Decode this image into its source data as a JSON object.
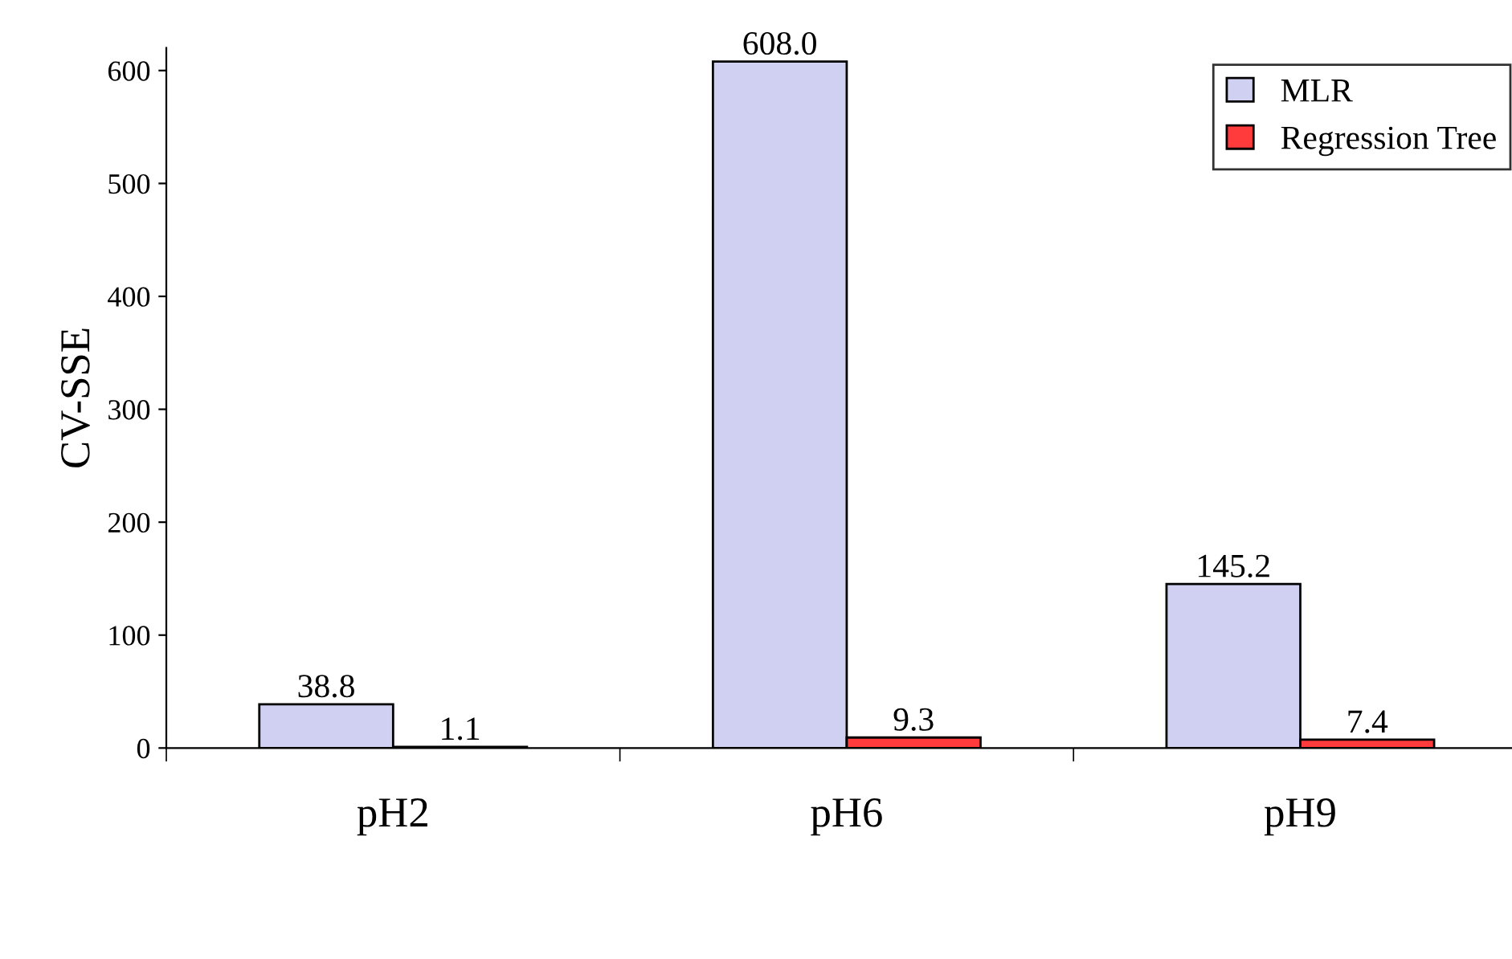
{
  "chart_data": {
    "type": "bar",
    "ylabel": "CV-SSE",
    "categories": [
      "pH2",
      "pH6",
      "pH9"
    ],
    "series": [
      {
        "name": "MLR",
        "color": "#d0d0f2",
        "values": [
          38.8,
          608.0,
          145.2
        ],
        "value_labels": [
          "38.8",
          "608.0",
          "145.2"
        ]
      },
      {
        "name": "Regression Tree",
        "color": "#ff3b3b",
        "values": [
          1.1,
          9.3,
          7.4
        ],
        "value_labels": [
          "1.1",
          "9.3",
          "7.4"
        ]
      }
    ],
    "ylim": [
      0,
      620
    ],
    "yticks": [
      0,
      100,
      200,
      300,
      400,
      500,
      600
    ],
    "grid": false,
    "legend": "top right"
  }
}
